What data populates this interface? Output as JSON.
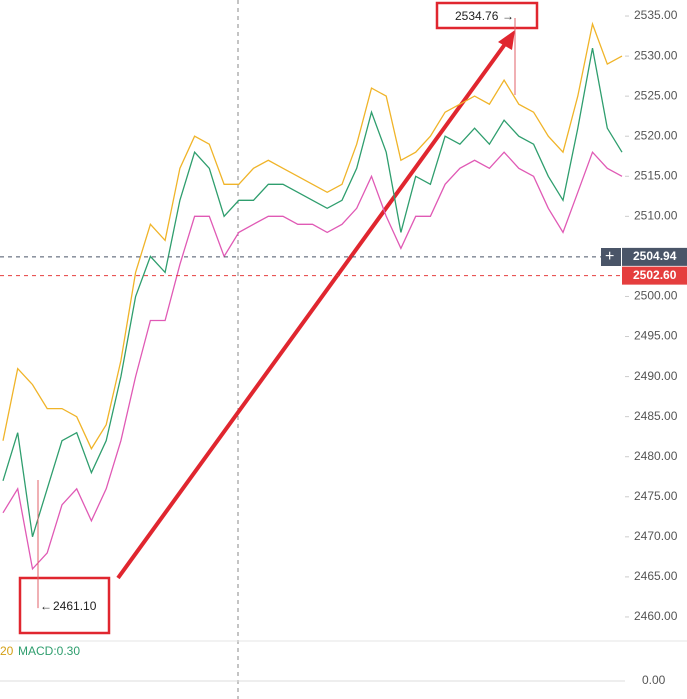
{
  "chart_data": {
    "type": "line",
    "ylim": [
      2457,
      2537
    ],
    "yticks": [
      {
        "value": 2460,
        "label": "2460.00"
      },
      {
        "value": 2465,
        "label": "2465.00"
      },
      {
        "value": 2470,
        "label": "2470.00"
      },
      {
        "value": 2475,
        "label": "2475.00"
      },
      {
        "value": 2480,
        "label": "2480.00"
      },
      {
        "value": 2485,
        "label": "2485.00"
      },
      {
        "value": 2490,
        "label": "2490.00"
      },
      {
        "value": 2495,
        "label": "2495.00"
      },
      {
        "value": 2500,
        "label": "2500.00"
      },
      {
        "value": 2505,
        "label": "2505.00"
      },
      {
        "value": 2510,
        "label": "2510.00"
      },
      {
        "value": 2515,
        "label": "2515.00"
      },
      {
        "value": 2520,
        "label": "2520.00"
      },
      {
        "value": 2525,
        "label": "2525.00"
      },
      {
        "value": 2530,
        "label": "2530.00"
      },
      {
        "value": 2535,
        "label": "2535.00"
      }
    ],
    "series": [
      {
        "color": "#f0b429",
        "values": [
          2482,
          2491,
          2489,
          2486,
          2486,
          2485,
          2481,
          2484,
          2492,
          2503,
          2509,
          2507,
          2516,
          2520,
          2519,
          2514,
          2514,
          2516,
          2517,
          2516,
          2515,
          2514,
          2513,
          2514,
          2519,
          2526,
          2525,
          2517,
          2518,
          2520,
          2523,
          2524,
          2525,
          2524,
          2527,
          2524,
          2523,
          2520,
          2518,
          2525,
          2534,
          2529,
          2530
        ]
      },
      {
        "color": "#2f9e6e",
        "values": [
          2477,
          2483,
          2470,
          2476,
          2482,
          2483,
          2478,
          2482,
          2490,
          2500,
          2505,
          2503,
          2512,
          2518,
          2516,
          2510,
          2512,
          2512,
          2514,
          2514,
          2513,
          2512,
          2511,
          2512,
          2516,
          2523,
          2518,
          2508,
          2515,
          2514,
          2520,
          2519,
          2521,
          2519,
          2522,
          2520,
          2519,
          2515,
          2512,
          2521,
          2531,
          2521,
          2518
        ]
      },
      {
        "color": "#e05ab5",
        "values": [
          2473,
          2476,
          2466,
          2468,
          2474,
          2476,
          2472,
          2476,
          2482,
          2490,
          2497,
          2497,
          2504,
          2510,
          2510,
          2505,
          2508,
          2509,
          2510,
          2510,
          2509,
          2509,
          2508,
          2509,
          2511,
          2515,
          2510,
          2506,
          2510,
          2510,
          2514,
          2516,
          2517,
          2516,
          2518,
          2516,
          2515,
          2511,
          2508,
          2513,
          2518,
          2516,
          2515
        ]
      }
    ],
    "high_marker": 2534.76,
    "low_marker": {
      "value": 2461.1,
      "label": "2461.10"
    },
    "price_tags": [
      {
        "value": 2504.94,
        "color": "#4a5568"
      },
      {
        "value": 2502.6,
        "label": "2502.60",
        "color": "#e53e3e"
      }
    ],
    "indicator_period": "20",
    "indicator_label": "MACD:0.30",
    "indicator_zero": "0.00"
  }
}
